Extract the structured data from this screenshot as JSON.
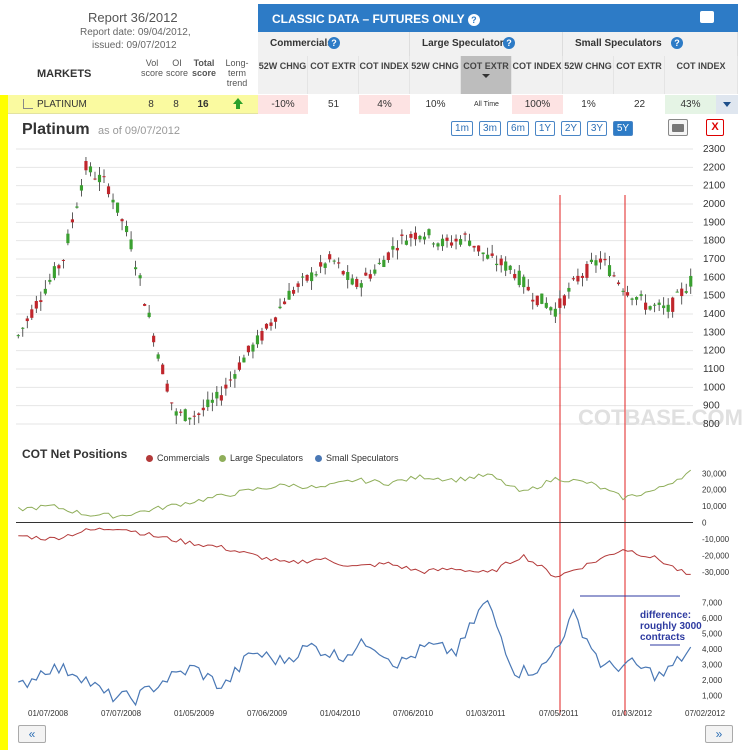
{
  "report": {
    "title": "Report 36/2012",
    "date_line": "Report date: 09/04/2012,",
    "issued_line": "issued: 09/07/2012"
  },
  "market_table": {
    "markets_label": "MARKETS",
    "vol_score": "Vol score",
    "oi_score": "OI score",
    "total_score": "Total score",
    "long_term_trend": "Long-term trend"
  },
  "classic": {
    "title": "CLASSIC DATA – FUTURES ONLY",
    "groups": [
      {
        "label": "Commercials"
      },
      {
        "label": "Large Speculators"
      },
      {
        "label": "Small Speculators"
      }
    ],
    "subheaders": [
      "52W CHNG",
      "COT EXTR",
      "COT INDEX",
      "52W CHNG",
      "COT EXTR",
      "COT INDEX",
      "52W CHNG",
      "COT EXTR",
      "COT INDEX"
    ]
  },
  "row": {
    "name": "PLATINUM",
    "vol": "8",
    "oi": "8",
    "total": "16",
    "values": [
      "-10%",
      "51",
      "4%",
      "10%",
      "All Time",
      "100%",
      "1%",
      "22",
      "43%"
    ],
    "trend_color": "#2aa02a"
  },
  "chart": {
    "title": "Platinum",
    "as_of": "as of 09/07/2012",
    "ranges": [
      "1m",
      "3m",
      "6m",
      "1Y",
      "2Y",
      "3Y",
      "5Y"
    ],
    "selected_range": "5Y",
    "close_label": "X",
    "watermark": "COTBASE.COM",
    "net_title": "COT Net Positions",
    "legend": [
      {
        "name": "Commercials",
        "color": "#b33a3a"
      },
      {
        "name": "Large Speculators",
        "color": "#8fae5a"
      },
      {
        "name": "Small Speculators",
        "color": "#4a78b5"
      }
    ],
    "annotation": [
      "difference:",
      "roughly 3000",
      "contracts"
    ],
    "nav_prev": "«",
    "nav_next": "»"
  },
  "chart_data": [
    {
      "type": "line",
      "title": "Platinum",
      "x": [
        "01/07/2008",
        "07/07/2008",
        "01/05/2009",
        "07/06/2009",
        "01/04/2010",
        "07/06/2010",
        "01/03/2011",
        "07/05/2011",
        "01/03/2012",
        "07/02/2012"
      ],
      "series": [
        {
          "name": "Platinum",
          "values": [
            1950,
            1700,
            780,
            1150,
            1550,
            1680,
            1820,
            1780,
            1600,
            1600
          ]
        }
      ],
      "ylim": [
        800,
        2300
      ],
      "yticks": [
        800,
        900,
        1000,
        1100,
        1200,
        1300,
        1400,
        1500,
        1600,
        1700,
        1800,
        1900,
        2000,
        2100,
        2200,
        2300
      ]
    },
    {
      "type": "line",
      "title": "COT Net Positions",
      "series": [
        {
          "name": "Commercials",
          "values": [
            -8000,
            -5000,
            -3000,
            -10000,
            -20000,
            -25000,
            -28000,
            -30000,
            -26000,
            -33000
          ]
        },
        {
          "name": "Large Speculators",
          "values": [
            8000,
            5000,
            4000,
            10000,
            20000,
            22000,
            24000,
            26000,
            22000,
            31000
          ]
        }
      ],
      "yticks": [
        30000,
        20000,
        10000,
        0,
        -10000,
        -20000,
        -30000
      ]
    },
    {
      "type": "line",
      "title": "Small Speculators",
      "series": [
        {
          "name": "Small Speculators",
          "values": [
            2000,
            2200,
            1000,
            2500,
            3500,
            4000,
            3800,
            7200,
            2500,
            4000
          ]
        }
      ],
      "yticks": [
        1000,
        2000,
        3000,
        4000,
        5000,
        6000,
        7000
      ]
    }
  ]
}
